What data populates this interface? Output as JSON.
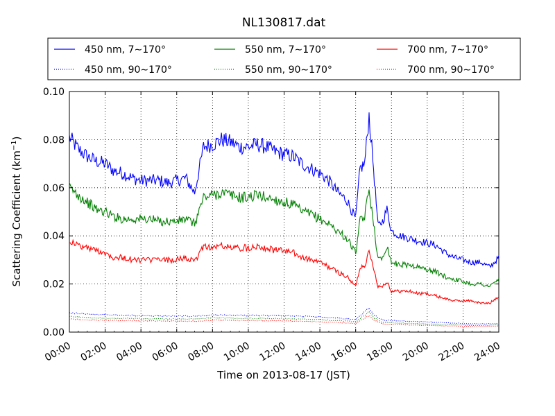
{
  "chart_data": {
    "type": "line",
    "title": "NL130817.dat",
    "xlabel": "Time on 2013-08-17 (JST)",
    "ylabel": "Scattering Coefficient (km",
    "ylabel_sup": "−1",
    "ylabel_end": ")",
    "xlim": [
      "00:00",
      "24:00"
    ],
    "ylim": [
      0.0,
      0.1
    ],
    "xticks": [
      "00:00",
      "02:00",
      "04:00",
      "06:00",
      "08:00",
      "10:00",
      "12:00",
      "14:00",
      "16:00",
      "18:00",
      "20:00",
      "22:00",
      "24:00"
    ],
    "yticks": [
      "0.00",
      "0.02",
      "0.04",
      "0.06",
      "0.08",
      "0.10"
    ],
    "grid": true,
    "legend_position": "top",
    "series": [
      {
        "name": "450 nm, 7∼170°",
        "color": "#0000ff",
        "style": "solid",
        "x": [
          0,
          0.5,
          1,
          1.5,
          2,
          2.5,
          3,
          3.5,
          4,
          4.5,
          5,
          5.5,
          6,
          6.5,
          7,
          7.5,
          8,
          8.5,
          9,
          9.5,
          10,
          10.5,
          11,
          11.5,
          12,
          12.5,
          13,
          13.5,
          14,
          14.5,
          15,
          15.5,
          16,
          16.25,
          16.5,
          16.75,
          17,
          17.25,
          17.5,
          17.75,
          18,
          18.5,
          19,
          19.5,
          20,
          20.5,
          21,
          21.5,
          22,
          22.5,
          23,
          23.5,
          24
        ],
        "y": [
          0.081,
          0.076,
          0.073,
          0.071,
          0.07,
          0.067,
          0.066,
          0.064,
          0.063,
          0.063,
          0.063,
          0.062,
          0.063,
          0.064,
          0.058,
          0.077,
          0.078,
          0.08,
          0.079,
          0.077,
          0.077,
          0.078,
          0.077,
          0.075,
          0.074,
          0.073,
          0.07,
          0.068,
          0.066,
          0.063,
          0.058,
          0.055,
          0.047,
          0.068,
          0.07,
          0.09,
          0.068,
          0.044,
          0.046,
          0.051,
          0.042,
          0.04,
          0.039,
          0.038,
          0.037,
          0.036,
          0.033,
          0.031,
          0.03,
          0.029,
          0.029,
          0.027,
          0.031
        ]
      },
      {
        "name": "550 nm, 7∼170°",
        "color": "#007f00",
        "style": "solid",
        "x": [
          0,
          0.5,
          1,
          1.5,
          2,
          2.5,
          3,
          3.5,
          4,
          4.5,
          5,
          5.5,
          6,
          6.5,
          7,
          7.5,
          8,
          8.5,
          9,
          9.5,
          10,
          10.5,
          11,
          11.5,
          12,
          12.5,
          13,
          13.5,
          14,
          14.5,
          15,
          15.5,
          16,
          16.25,
          16.5,
          16.75,
          17,
          17.25,
          17.5,
          17.75,
          18,
          18.5,
          19,
          19.5,
          20,
          20.5,
          21,
          21.5,
          22,
          22.5,
          23,
          23.5,
          24
        ],
        "y": [
          0.06,
          0.057,
          0.054,
          0.051,
          0.05,
          0.048,
          0.047,
          0.047,
          0.047,
          0.047,
          0.046,
          0.046,
          0.046,
          0.047,
          0.045,
          0.056,
          0.057,
          0.058,
          0.057,
          0.056,
          0.056,
          0.057,
          0.056,
          0.055,
          0.054,
          0.053,
          0.05,
          0.049,
          0.047,
          0.045,
          0.042,
          0.039,
          0.033,
          0.046,
          0.048,
          0.059,
          0.046,
          0.03,
          0.031,
          0.036,
          0.029,
          0.028,
          0.028,
          0.027,
          0.026,
          0.025,
          0.023,
          0.022,
          0.021,
          0.02,
          0.02,
          0.019,
          0.022
        ]
      },
      {
        "name": "700 nm, 7∼170°",
        "color": "#ff0000",
        "style": "solid",
        "x": [
          0,
          0.5,
          1,
          1.5,
          2,
          2.5,
          3,
          3.5,
          4,
          4.5,
          5,
          5.5,
          6,
          6.5,
          7,
          7.5,
          8,
          8.5,
          9,
          9.5,
          10,
          10.5,
          11,
          11.5,
          12,
          12.5,
          13,
          13.5,
          14,
          14.5,
          15,
          15.5,
          16,
          16.25,
          16.5,
          16.75,
          17,
          17.25,
          17.5,
          17.75,
          18,
          18.5,
          19,
          19.5,
          20,
          20.5,
          21,
          21.5,
          22,
          22.5,
          23,
          23.5,
          24
        ],
        "y": [
          0.038,
          0.036,
          0.035,
          0.034,
          0.033,
          0.031,
          0.031,
          0.03,
          0.03,
          0.03,
          0.03,
          0.03,
          0.03,
          0.031,
          0.029,
          0.036,
          0.035,
          0.036,
          0.035,
          0.035,
          0.035,
          0.036,
          0.035,
          0.034,
          0.034,
          0.033,
          0.031,
          0.03,
          0.029,
          0.027,
          0.025,
          0.023,
          0.019,
          0.027,
          0.028,
          0.033,
          0.027,
          0.019,
          0.019,
          0.021,
          0.017,
          0.017,
          0.017,
          0.016,
          0.016,
          0.015,
          0.014,
          0.013,
          0.013,
          0.013,
          0.012,
          0.012,
          0.015
        ]
      },
      {
        "name": "450 nm, 90∼170°",
        "color": "#0000ff",
        "style": "dotted",
        "x": [
          0,
          1,
          2,
          3,
          4,
          5,
          6,
          7,
          8,
          9,
          10,
          11,
          12,
          13,
          14,
          15,
          16,
          16.5,
          16.75,
          17,
          17.5,
          18,
          19,
          20,
          21,
          22,
          23,
          24
        ],
        "y": [
          0.008,
          0.0075,
          0.0072,
          0.007,
          0.0068,
          0.0067,
          0.0067,
          0.0066,
          0.0072,
          0.007,
          0.0069,
          0.0069,
          0.0068,
          0.0066,
          0.0063,
          0.0058,
          0.0052,
          0.0085,
          0.01,
          0.0072,
          0.005,
          0.0048,
          0.0045,
          0.0042,
          0.0039,
          0.0036,
          0.0034,
          0.0036
        ]
      },
      {
        "name": "550 nm, 90∼170°",
        "color": "#007f00",
        "style": "dotted",
        "x": [
          0,
          1,
          2,
          3,
          4,
          5,
          6,
          7,
          8,
          9,
          10,
          11,
          12,
          13,
          14,
          15,
          16,
          16.5,
          16.75,
          17,
          17.5,
          18,
          19,
          20,
          21,
          22,
          23,
          24
        ],
        "y": [
          0.0065,
          0.006,
          0.0058,
          0.0057,
          0.0056,
          0.0055,
          0.0055,
          0.0054,
          0.006,
          0.0058,
          0.0057,
          0.0057,
          0.0056,
          0.0054,
          0.0052,
          0.0048,
          0.0043,
          0.007,
          0.0085,
          0.006,
          0.0041,
          0.0039,
          0.0036,
          0.0034,
          0.0031,
          0.0029,
          0.0027,
          0.003
        ]
      },
      {
        "name": "700 nm, 90∼170°",
        "color": "#ff0000",
        "style": "dotted",
        "x": [
          0,
          1,
          2,
          3,
          4,
          5,
          6,
          7,
          8,
          9,
          10,
          11,
          12,
          13,
          14,
          15,
          16,
          16.5,
          16.75,
          17,
          17.5,
          18,
          19,
          20,
          21,
          22,
          23,
          24
        ],
        "y": [
          0.0055,
          0.0051,
          0.0049,
          0.0048,
          0.0047,
          0.0046,
          0.0046,
          0.0045,
          0.005,
          0.0049,
          0.0048,
          0.0048,
          0.0047,
          0.0045,
          0.0043,
          0.004,
          0.0036,
          0.0058,
          0.007,
          0.005,
          0.0034,
          0.0032,
          0.003,
          0.0028,
          0.0026,
          0.0024,
          0.0023,
          0.0025
        ]
      }
    ]
  }
}
